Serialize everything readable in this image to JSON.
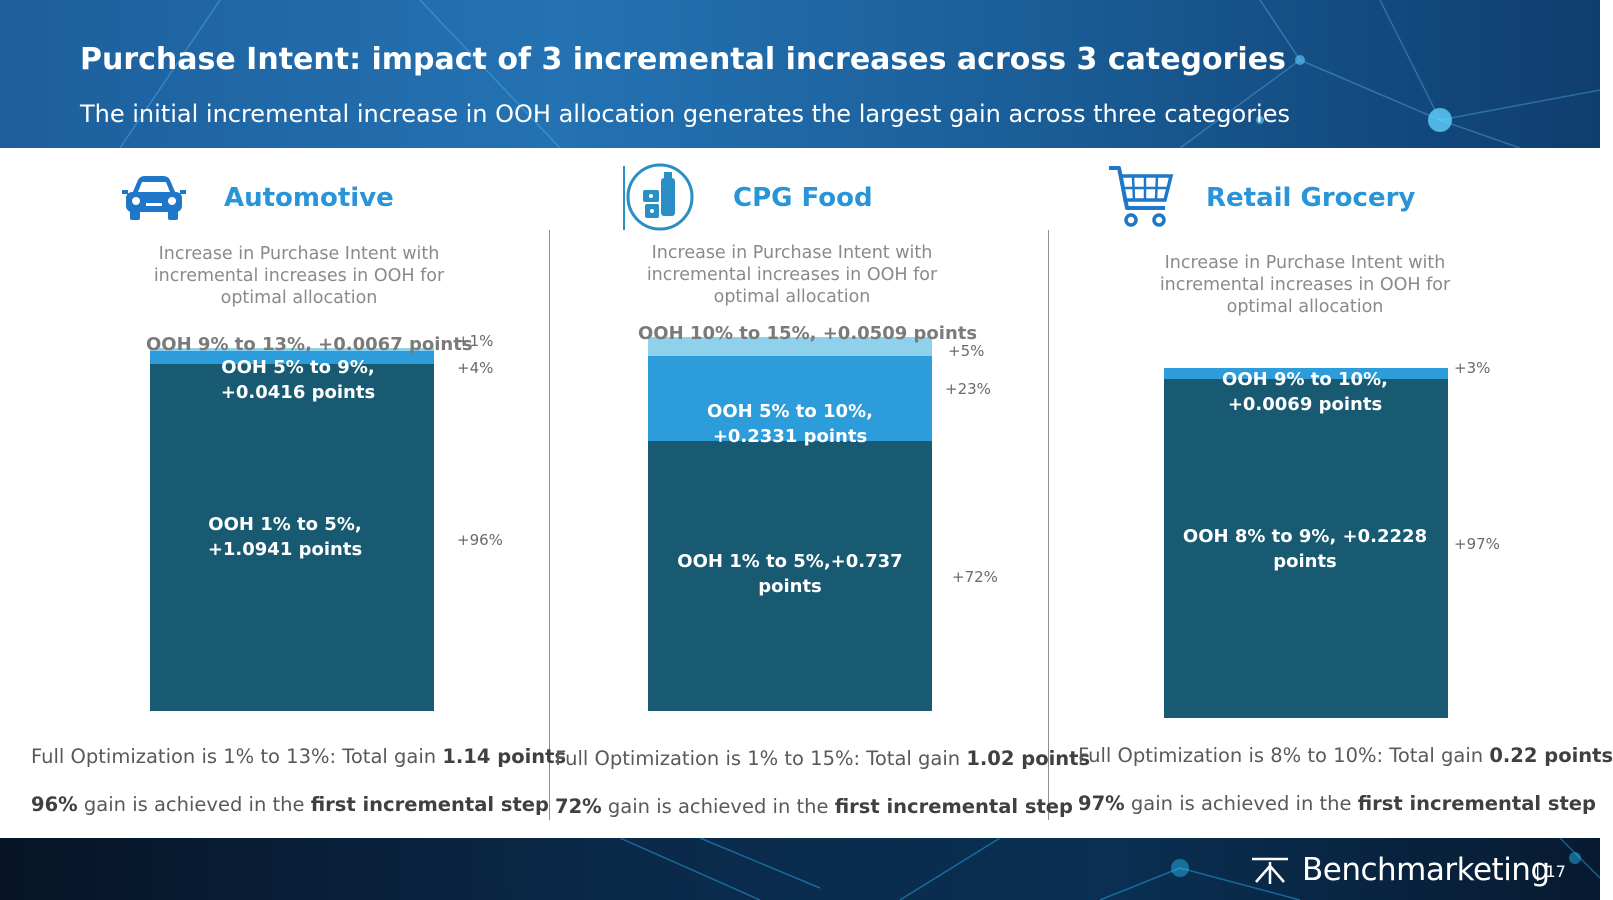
{
  "header": {
    "title": "Purchase Intent: impact of 3 incremental increases across 3 categories",
    "subtitle": "The initial incremental increase in OOH allocation generates the largest gain across three categories"
  },
  "footer": {
    "brand": "Benchmarketing",
    "separator": "|",
    "page_number": "17"
  },
  "colors": {
    "dark_segment": "#185a72",
    "mid_segment": "#2d9cdb",
    "light_segment": "#8fd1ea",
    "category_title": "#2a95d6",
    "header_bg": "#1d5f9c"
  },
  "panels": [
    {
      "category": "Automotive",
      "icon": "car-icon",
      "chart_title": "Increase in Purchase Intent with incremental increases in OOH for optimal allocation",
      "summary_prefix": "Full Optimization is 1% to 13%: Total gain ",
      "summary_value": "1.14 points",
      "gain_pct": "96%",
      "gain_mid": " gain is achieved in the ",
      "gain_emph": "first incremental step"
    },
    {
      "category": "CPG Food",
      "icon": "food-products-icon",
      "chart_title": "Increase in Purchase Intent with incremental increases in OOH for optimal allocation",
      "summary_prefix": "Full Optimization is 1% to 15%: Total gain ",
      "summary_value": "1.02 points",
      "gain_pct": "72%",
      "gain_mid": " gain is achieved in the ",
      "gain_emph": "first incremental step"
    },
    {
      "category": "Retail Grocery",
      "icon": "shopping-cart-icon",
      "chart_title": "Increase in Purchase Intent with incremental increases in OOH for optimal allocation",
      "summary_prefix": "Full Optimization is 8% to 10%: Total gain ",
      "summary_value": "0.22 points",
      "gain_pct": "97%",
      "gain_mid": " gain is achieved in the ",
      "gain_emph": "first incremental step"
    }
  ],
  "chart_data": [
    {
      "type": "bar",
      "stacked": true,
      "title": "Increase in Purchase Intent with incremental increases in OOH for optimal allocation",
      "categories": [
        "Automotive"
      ],
      "series": [
        {
          "name": "OOH 1% to 5%, +1.0941 points",
          "values": [
            1.0941
          ],
          "share": "+96%"
        },
        {
          "name": "OOH 5% to 9%, +0.0416 points",
          "values": [
            0.0416
          ],
          "share": "+4%"
        },
        {
          "name": "OOH 9% to 13%, +0.0067 points",
          "values": [
            0.0067
          ],
          "share": "+1%"
        }
      ]
    },
    {
      "type": "bar",
      "stacked": true,
      "title": "Increase in Purchase Intent with incremental increases in OOH for optimal allocation",
      "categories": [
        "CPG Food"
      ],
      "series": [
        {
          "name": "OOH 1% to 5%,+0.737 points",
          "values": [
            0.737
          ],
          "share": "+72%"
        },
        {
          "name": "OOH 5% to 10%, +0.2331 points",
          "values": [
            0.2331
          ],
          "share": "+23%"
        },
        {
          "name": "OOH 10% to 15%, +0.0509 points",
          "values": [
            0.0509
          ],
          "share": "+5%"
        }
      ]
    },
    {
      "type": "bar",
      "stacked": true,
      "title": "Increase in Purchase Intent with incremental increases in OOH for optimal allocation",
      "categories": [
        "Retail Grocery"
      ],
      "series": [
        {
          "name": "OOH 8% to 9%, +0.2228 points",
          "values": [
            0.2228
          ],
          "share": "+97%"
        },
        {
          "name": "OOH 9% to 10%, +0.0069 points",
          "values": [
            0.0069
          ],
          "share": "+3%"
        }
      ]
    }
  ]
}
